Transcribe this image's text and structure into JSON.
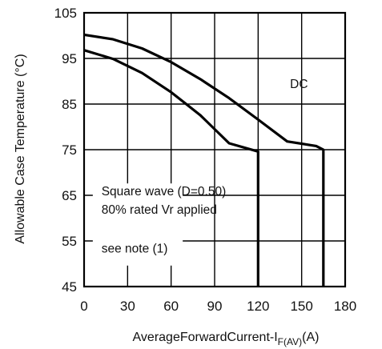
{
  "chart_data": {
    "type": "line",
    "title": "",
    "xlabel": {
      "main": "AverageForwardCurrent-I",
      "subscript": "F(AV)",
      "unit": "(A)"
    },
    "ylabel": "Allowable Case Temperature  (°C)",
    "xlim": [
      0,
      180
    ],
    "ylim": [
      45,
      105
    ],
    "x_ticks": [
      0,
      30,
      60,
      90,
      120,
      150,
      180
    ],
    "y_ticks": [
      105,
      95,
      85,
      75,
      65,
      55,
      45
    ],
    "grid": true,
    "series": [
      {
        "name": "DC",
        "points": [
          [
            0,
            100.2
          ],
          [
            20,
            99.2
          ],
          [
            40,
            97.2
          ],
          [
            60,
            94.2
          ],
          [
            80,
            90.5
          ],
          [
            100,
            86.3
          ],
          [
            120,
            81.6
          ],
          [
            140,
            76.8
          ],
          [
            160,
            75.8
          ],
          [
            165,
            75
          ],
          [
            165,
            45
          ]
        ]
      },
      {
        "name": "Square wave (D=0.50)",
        "points": [
          [
            0,
            96.8
          ],
          [
            20,
            94.9
          ],
          [
            40,
            91.8
          ],
          [
            60,
            87.6
          ],
          [
            80,
            82.6
          ],
          [
            100,
            76.4
          ],
          [
            120,
            74.6
          ],
          [
            120,
            45
          ]
        ]
      }
    ],
    "annotations": [
      {
        "id": "dc",
        "text": "DC",
        "x": 142,
        "y": 88.5
      },
      {
        "id": "square",
        "text": "Square wave (D=0.50)",
        "x": 12,
        "y": 65
      },
      {
        "id": "rated",
        "text": "80% rated Vr applied",
        "x": 12,
        "y": 61
      },
      {
        "id": "note",
        "text": "see note (1)",
        "x": 12,
        "y": 52.5
      }
    ]
  }
}
